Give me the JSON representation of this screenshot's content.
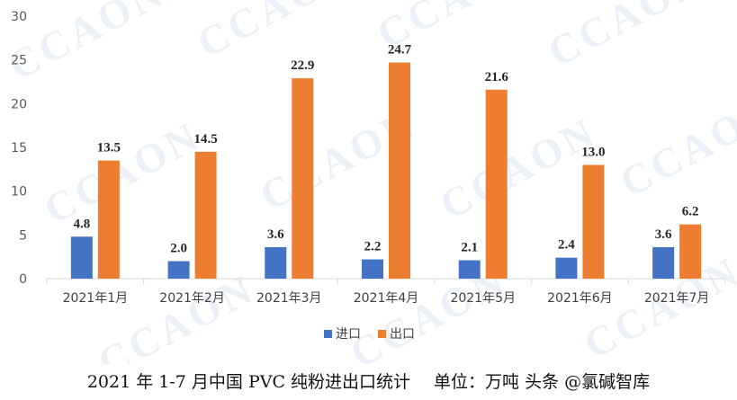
{
  "chart_data": {
    "type": "bar",
    "title": "",
    "xlabel": "",
    "ylabel": "",
    "categories": [
      "2021年1月",
      "2021年2月",
      "2021年3月",
      "2021年4月",
      "2021年5月",
      "2021年6月",
      "2021年7月"
    ],
    "series": [
      {
        "name": "进口",
        "values": [
          4.8,
          2.0,
          3.6,
          2.2,
          2.1,
          2.4,
          3.6
        ],
        "labels": [
          "4.8",
          "2.0",
          "3.6",
          "2.2",
          "2.1",
          "2.4",
          "3.6"
        ],
        "color": "#4472c4"
      },
      {
        "name": "出口",
        "values": [
          13.5,
          14.5,
          22.9,
          24.7,
          21.6,
          13.0,
          6.2
        ],
        "labels": [
          "13.5",
          "14.5",
          "22.9",
          "24.7",
          "21.6",
          "13.0",
          "6.2"
        ],
        "color": "#ed7d31"
      }
    ],
    "yticks": [
      "0",
      "5",
      "10",
      "15",
      "20",
      "25",
      "30"
    ],
    "ylim": [
      0,
      30
    ],
    "grid": false,
    "legend": "bottom-center"
  },
  "watermark": "CCAON",
  "caption": {
    "title": "2021 年 1-7 月中国 PVC 纯粉进出口统计",
    "unit": "单位：万吨",
    "source": "头条 @氯碱智库"
  }
}
